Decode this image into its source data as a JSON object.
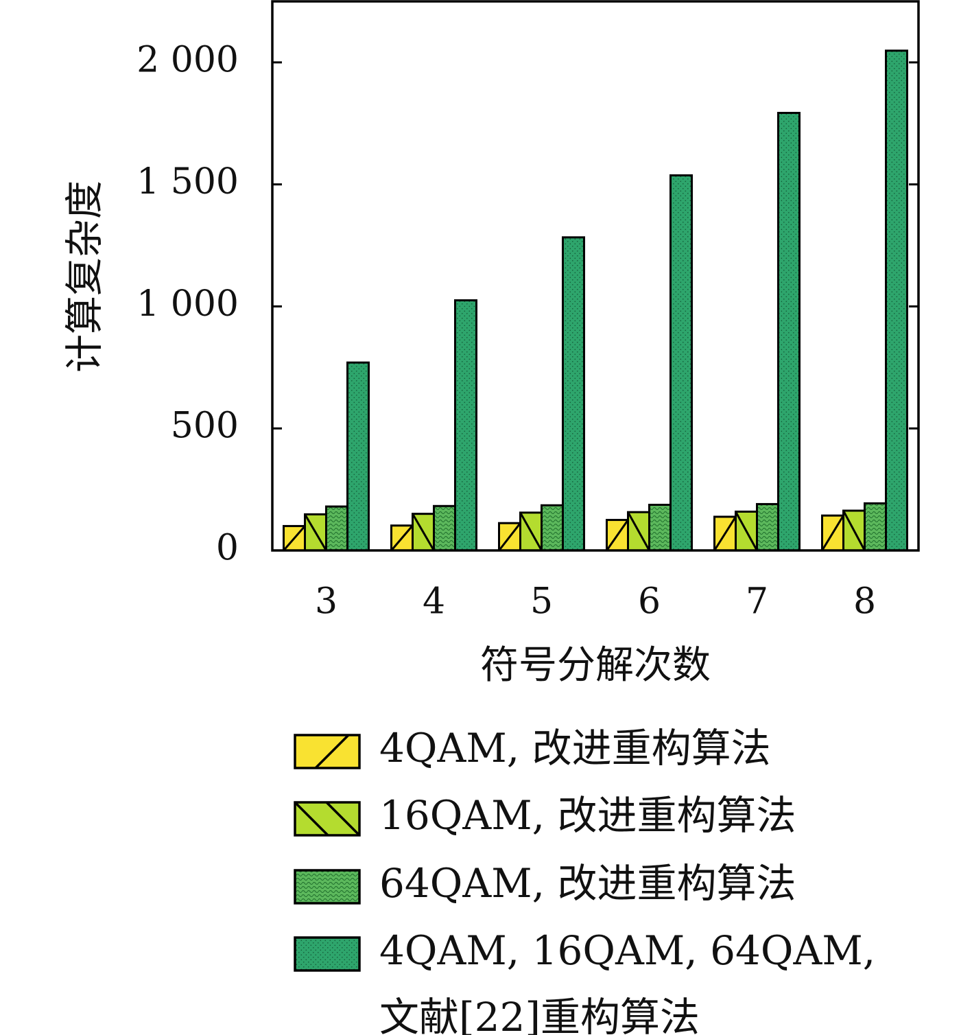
{
  "chart_data": {
    "type": "bar",
    "xlabel": "符号分解次数",
    "ylabel": "计算复杂度",
    "categories": [
      "3",
      "4",
      "5",
      "6",
      "7",
      "8"
    ],
    "ylim": [
      0,
      2250
    ],
    "yticks": [
      0,
      500,
      1000,
      1500,
      2000
    ],
    "ytick_labels": [
      "0",
      "500",
      "1 000",
      "1 500",
      "2 000"
    ],
    "grid": false,
    "legend_position": "bottom",
    "series": [
      {
        "name": "4QAM, 改进重构算法",
        "values": [
          100,
          102,
          112,
          125,
          138,
          143
        ],
        "color": "#f9e231",
        "pattern": "forward-diagonal"
      },
      {
        "name": "16QAM, 改进重构算法",
        "values": [
          148,
          150,
          155,
          157,
          159,
          163
        ],
        "color": "#b4dc2f",
        "pattern": "backward-diagonal"
      },
      {
        "name": "64QAM, 改进重构算法",
        "values": [
          180,
          182,
          185,
          187,
          190,
          193
        ],
        "color": "#5cb85c",
        "pattern": "wavy"
      },
      {
        "name": "4QAM, 16QAM, 64QAM,\n文献[22]重构算法",
        "values": [
          770,
          1025,
          1283,
          1537,
          1793,
          2048
        ],
        "color": "#2ea56c",
        "pattern": "dots"
      }
    ]
  }
}
